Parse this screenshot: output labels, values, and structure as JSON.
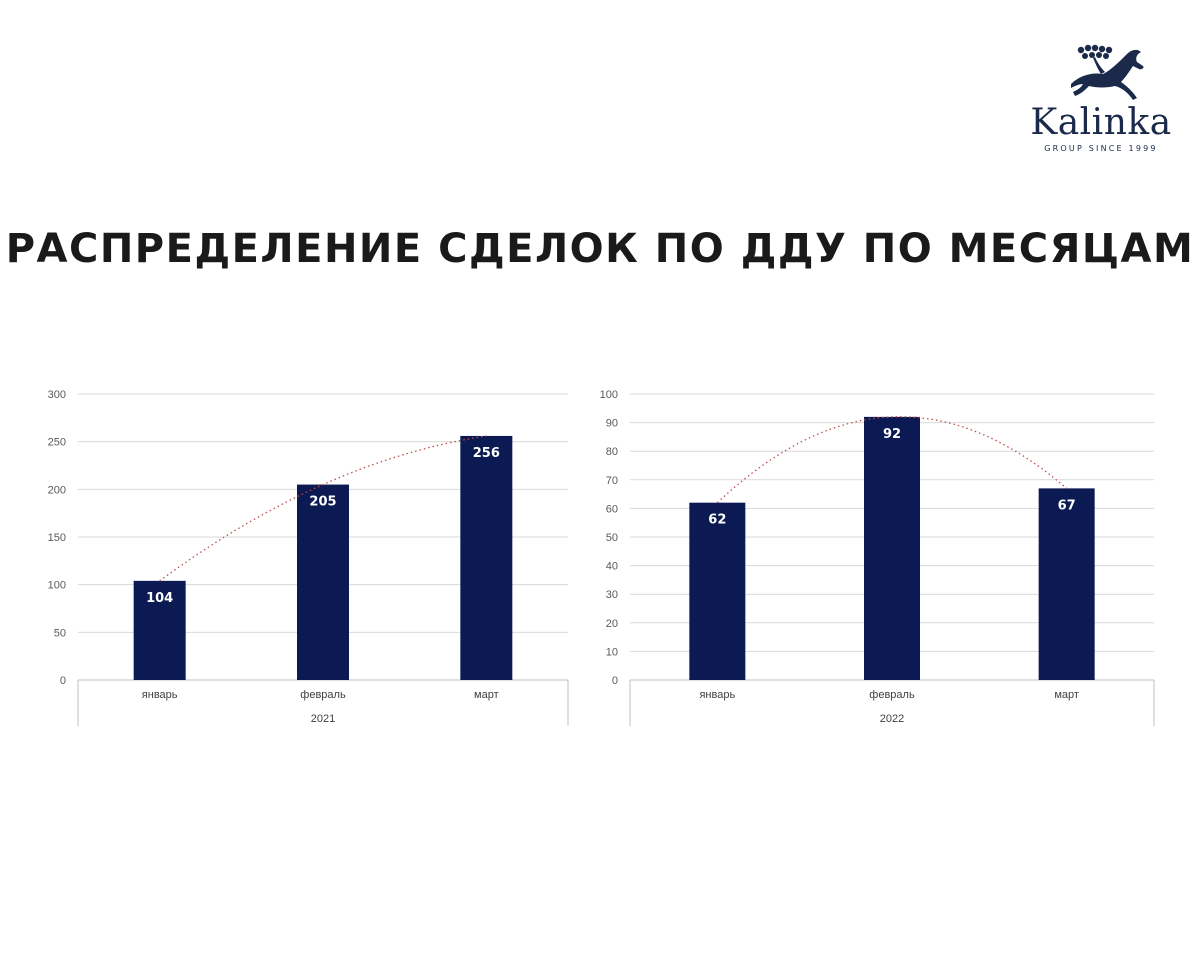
{
  "logo": {
    "brand": "Kalinka",
    "tagline": "GROUP SINCE 1999"
  },
  "page": {
    "title": "РАСПРЕДЕЛЕНИЕ СДЕЛОК ПО ДДУ ПО МЕСЯЦАМ"
  },
  "colors": {
    "bar": "#0b1a52",
    "trendline": "#c0504d",
    "grid": "#d9d9d9",
    "axis": "#bfbfbf"
  },
  "chart_data": [
    {
      "type": "bar",
      "title": "",
      "categories": [
        "январь",
        "февраль",
        "март"
      ],
      "values": [
        104,
        205,
        256
      ],
      "group_label": "2021",
      "ylim": [
        0,
        300
      ],
      "yticks": [
        0,
        50,
        100,
        150,
        200,
        250,
        300
      ],
      "grid": true,
      "data_labels": true,
      "trendline": "polynomial",
      "legend": "none"
    },
    {
      "type": "bar",
      "title": "",
      "categories": [
        "январь",
        "февраль",
        "март"
      ],
      "values": [
        62,
        92,
        67
      ],
      "group_label": "2022",
      "ylim": [
        0,
        100
      ],
      "yticks": [
        0,
        10,
        20,
        30,
        40,
        50,
        60,
        70,
        80,
        90,
        100
      ],
      "grid": true,
      "data_labels": true,
      "trendline": "polynomial",
      "legend": "none"
    }
  ]
}
